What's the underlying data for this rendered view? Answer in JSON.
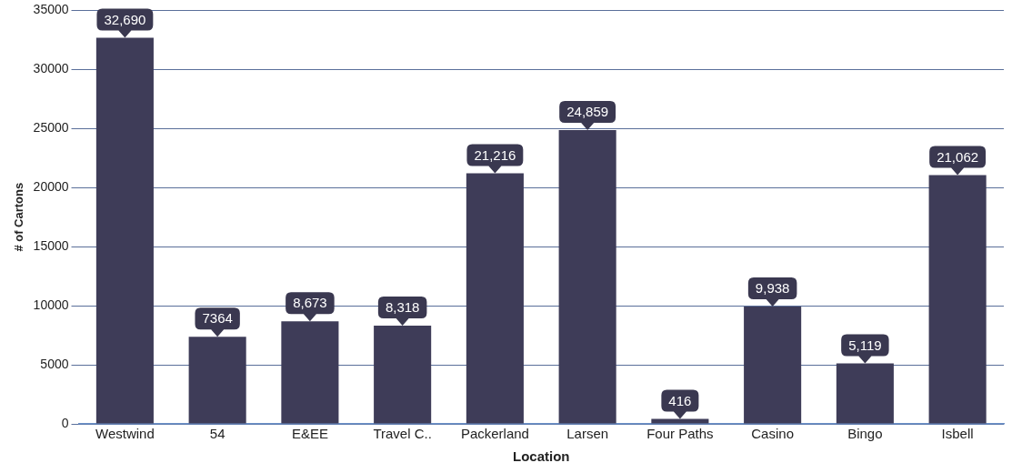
{
  "chart_data": {
    "type": "bar",
    "xlabel": "Location",
    "ylabel": "# of Cartons",
    "categories": [
      "Westwind",
      "54",
      "E&EE",
      "Travel C..",
      "Packerland",
      "Larsen",
      "Four Paths",
      "Casino",
      "Bingo",
      "Isbell"
    ],
    "values": [
      32690,
      7364,
      8673,
      8318,
      21216,
      24859,
      416,
      9938,
      5119,
      21062
    ],
    "value_labels": [
      "32,690",
      "7364",
      "8,673",
      "8,318",
      "21,216",
      "24,859",
      "416",
      "9,938",
      "5,119",
      "21,062"
    ],
    "color": "#3e3c58",
    "ylim": [
      0,
      35000
    ],
    "yticks": [
      0,
      5000,
      10000,
      15000,
      20000,
      25000,
      30000,
      35000
    ],
    "grid": "y",
    "legend": false
  }
}
